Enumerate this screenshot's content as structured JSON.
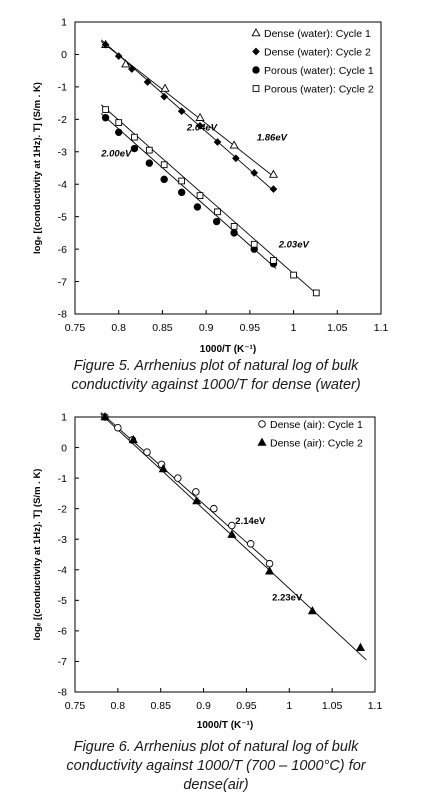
{
  "chart_data": [
    {
      "type": "scatter",
      "title": "",
      "xlabel": "1000/T (K⁻¹)",
      "ylabel": "logₑ [(conductivity at 1Hz). T]  (S/m . K)",
      "xlim": [
        0.75,
        1.1
      ],
      "ylim": [
        -8,
        1
      ],
      "xticks": [
        "0.75",
        "0.8",
        "0.85",
        "0.9",
        "0.95",
        "1",
        "1.05",
        "1.1"
      ],
      "yticks": [
        "-8",
        "-7",
        "-6",
        "-5",
        "-4",
        "-3",
        "-2",
        "-1",
        "0",
        "1"
      ],
      "legend_position": "top-right",
      "series": [
        {
          "name": "Dense (water): Cycle 1",
          "marker": "triangle-open",
          "x": [
            0.785,
            0.808,
            0.853,
            0.893,
            0.932,
            0.977
          ],
          "y": [
            0.3,
            -0.3,
            -1.05,
            -1.95,
            -2.8,
            -3.7
          ]
        },
        {
          "name": "Dense (water): Cycle 2",
          "marker": "diamond-filled",
          "x": [
            0.785,
            0.8,
            0.815,
            0.833,
            0.852,
            0.872,
            0.893,
            0.913,
            0.934,
            0.955,
            0.977
          ],
          "y": [
            0.3,
            -0.05,
            -0.45,
            -0.85,
            -1.3,
            -1.75,
            -2.2,
            -2.7,
            -3.2,
            -3.65,
            -4.15
          ]
        },
        {
          "name": "Porous (water): Cycle 1",
          "marker": "circle-filled",
          "x": [
            0.785,
            0.8,
            0.818,
            0.835,
            0.852,
            0.872,
            0.89,
            0.912,
            0.932,
            0.955,
            0.977
          ],
          "y": [
            -1.95,
            -2.4,
            -2.9,
            -3.35,
            -3.85,
            -4.25,
            -4.7,
            -5.15,
            -5.5,
            -6.0,
            -6.45
          ]
        },
        {
          "name": "Porous (water): Cycle 2",
          "marker": "square-open",
          "x": [
            0.785,
            0.8,
            0.818,
            0.835,
            0.852,
            0.872,
            0.893,
            0.913,
            0.932,
            0.955,
            0.977,
            1.0,
            1.026
          ],
          "y": [
            -1.7,
            -2.1,
            -2.55,
            -2.95,
            -3.4,
            -3.9,
            -4.35,
            -4.85,
            -5.3,
            -5.85,
            -6.35,
            -6.8,
            -7.35
          ]
        }
      ],
      "trend_lines": [
        {
          "x": [
            0.78,
            0.978
          ],
          "y": [
            0.45,
            -4.22
          ]
        },
        {
          "x": [
            0.78,
            0.978
          ],
          "y": [
            0.4,
            -3.78
          ]
        },
        {
          "x": [
            0.78,
            0.98
          ],
          "y": [
            -1.82,
            -6.6
          ]
        },
        {
          "x": [
            0.78,
            1.028
          ],
          "y": [
            -1.55,
            -7.42
          ]
        }
      ],
      "annotations": [
        {
          "text": "2.04eV",
          "x": 0.878,
          "y": -2.35,
          "style": "bold-italic"
        },
        {
          "text": "1.86eV",
          "x": 0.958,
          "y": -2.65,
          "style": "bold-italic"
        },
        {
          "text": "2.00eV",
          "x": 0.78,
          "y": -3.15,
          "style": "bold-italic"
        },
        {
          "text": "2.03eV",
          "x": 0.983,
          "y": -5.95,
          "style": "bold-italic"
        }
      ]
    },
    {
      "type": "scatter",
      "title": "",
      "xlabel": "1000/T (K⁻¹)",
      "ylabel": "logₑ [(conductivity at 1Hz). T]  (S/m . K)",
      "xlim": [
        0.75,
        1.1
      ],
      "ylim": [
        -8,
        1
      ],
      "xticks": [
        "0.75",
        "0.8",
        "0.85",
        "0.9",
        "0.95",
        "1",
        "1.05",
        "1.1"
      ],
      "yticks": [
        "-8",
        "-7",
        "-6",
        "-5",
        "-4",
        "-3",
        "-2",
        "-1",
        "0",
        "1"
      ],
      "legend_position": "top-right",
      "series": [
        {
          "name": "Dense (air): Cycle 1",
          "marker": "circle-open",
          "x": [
            0.785,
            0.8,
            0.817,
            0.834,
            0.851,
            0.87,
            0.891,
            0.912,
            0.933,
            0.955,
            0.977
          ],
          "y": [
            1.0,
            0.65,
            0.25,
            -0.15,
            -0.55,
            -1.0,
            -1.45,
            -2.0,
            -2.55,
            -3.15,
            -3.8
          ]
        },
        {
          "name": "Dense (air): Cycle 2",
          "marker": "triangle-filled",
          "x": [
            0.785,
            0.818,
            0.853,
            0.892,
            0.933,
            0.977,
            1.027,
            1.083
          ],
          "y": [
            1.0,
            0.25,
            -0.7,
            -1.75,
            -2.85,
            -4.05,
            -5.35,
            -6.55
          ]
        }
      ],
      "trend_lines": [
        {
          "x": [
            0.78,
            0.98
          ],
          "y": [
            1.15,
            -3.85
          ]
        },
        {
          "x": [
            0.78,
            1.09
          ],
          "y": [
            1.1,
            -6.95
          ]
        }
      ],
      "annotations": [
        {
          "text": "2.14eV",
          "x": 0.937,
          "y": -2.5,
          "style": "bold"
        },
        {
          "text": "2.23eV",
          "x": 0.98,
          "y": -5.0,
          "style": "bold"
        }
      ]
    }
  ],
  "captions": {
    "fig5_line1": "Figure 5. Arrhenius plot of natural log of bulk",
    "fig5_line2": "conductivity against 1000/T for dense (water)",
    "fig6_line1": "Figure 6. Arrhenius plot of natural log of bulk",
    "fig6_line2": "conductivity against 1000/T (700 – 1000°C) for",
    "fig6_line3": "dense(air)"
  }
}
